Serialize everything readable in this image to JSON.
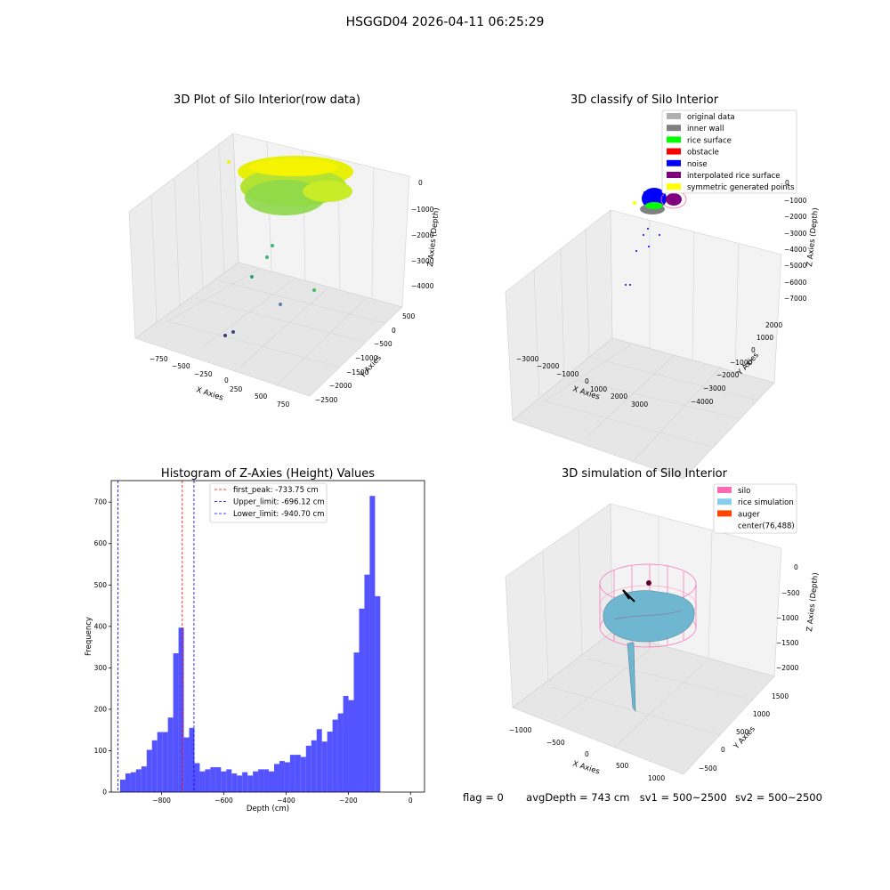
{
  "figure": {
    "suptitle": "HSGGD04 2026-04-11 06:25:29",
    "footer": {
      "flag": "flag = 0",
      "avgDepth": "avgDepth = 743 cm",
      "sv1": "sv1 = 500~2500",
      "sv2": "sv2 = 500~2500"
    }
  },
  "panels": {
    "raw": {
      "title": "3D Plot of Silo Interior(row data)",
      "xlabel": "X Axies",
      "ylabel": "Y Axies",
      "zlabel": "Z Axies (Depth)",
      "xticks": [
        "−750",
        "−500",
        "−250",
        "0",
        "250",
        "500",
        "750"
      ],
      "yticks": [
        "500",
        "0",
        "−500",
        "−1000",
        "−1500",
        "−2000",
        "−2500"
      ],
      "zticks": [
        "0",
        "−1000",
        "−2000",
        "−3000",
        "−4000"
      ]
    },
    "classify": {
      "title": "3D classify of Silo Interior",
      "xlabel": "X Axies",
      "ylabel": "Y Axies",
      "zlabel": "Z Axies (Depth)",
      "xticks": [
        "−3000",
        "−2000",
        "−1000",
        "0",
        "1000",
        "2000",
        "3000"
      ],
      "yticks": [
        "2000",
        "1000",
        "0",
        "−1000",
        "−2000",
        "−3000",
        "−4000"
      ],
      "zticks": [
        "0",
        "−1000",
        "−2000",
        "−3000",
        "−4000",
        "−5000",
        "−6000",
        "−7000"
      ],
      "legend": [
        {
          "label": "original data",
          "color": "#b0b0b0"
        },
        {
          "label": "inner wall",
          "color": "#808080"
        },
        {
          "label": "rice surface",
          "color": "#00ff00"
        },
        {
          "label": "obstacle",
          "color": "#ff0000"
        },
        {
          "label": "noise",
          "color": "#0000ff"
        },
        {
          "label": "interpolated rice surface",
          "color": "#800080"
        },
        {
          "label": "symmetric generated points",
          "color": "#ffff00"
        }
      ]
    },
    "simulation": {
      "title": "3D simulation of Silo Interior",
      "xlabel": "X Axies",
      "ylabel": "Y Axies",
      "zlabel": "Z Axies (Depth)",
      "xticks": [
        "−1000",
        "−500",
        "0",
        "500",
        "1000"
      ],
      "yticks": [
        "1500",
        "1000",
        "500",
        "0",
        "−500"
      ],
      "zticks": [
        "0",
        "−500",
        "−1000",
        "−1500",
        "−2000"
      ],
      "legend": [
        {
          "label": "silo",
          "color": "#ff69b4"
        },
        {
          "label": "rice simulation",
          "color": "#87ceeb"
        },
        {
          "label": "auger",
          "color": "#ff4500"
        },
        {
          "label": "center(76,488)",
          "color": ""
        }
      ]
    }
  },
  "chart_data": {
    "type": "bar",
    "title": "Histogram of Z-Axies (Height) Values",
    "xlabel": "Depth (cm)",
    "ylabel": "Frequency",
    "xlim": [
      -962,
      45
    ],
    "ylim": [
      0,
      752
    ],
    "xticks": [
      -800,
      -600,
      -400,
      -200,
      0
    ],
    "yticks": [
      0,
      100,
      200,
      300,
      400,
      500,
      600,
      700
    ],
    "bar_color": "#4a4aff",
    "bin_width": 17.07,
    "bin_start": -933.5,
    "values": [
      30,
      45,
      48,
      55,
      62,
      102,
      125,
      145,
      145,
      180,
      335,
      397,
      132,
      155,
      70,
      50,
      55,
      60,
      60,
      50,
      55,
      45,
      40,
      48,
      40,
      50,
      55,
      55,
      50,
      68,
      75,
      72,
      90,
      90,
      85,
      112,
      125,
      152,
      122,
      146,
      175,
      190,
      232,
      222,
      337,
      443,
      525,
      715,
      473
    ],
    "lines": [
      {
        "name": "first_peak: -733.75 cm",
        "x": -733.75,
        "color": "#ff0000"
      },
      {
        "name": "Upper_limit: -696.12 cm",
        "x": -696.12,
        "color": "#0000ff"
      },
      {
        "name": "Lower_limit: -940.70 cm",
        "x": -940.7,
        "color": "#0000ff"
      }
    ],
    "legend_position": "top-center"
  }
}
